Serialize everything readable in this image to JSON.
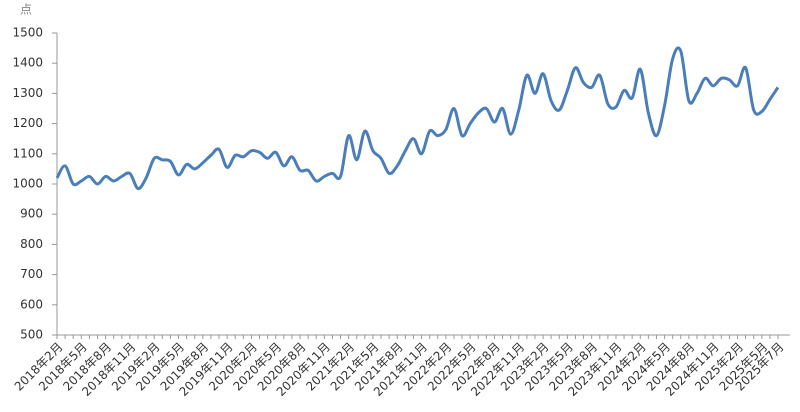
{
  "chart_data": {
    "type": "line",
    "y_label": "点",
    "categories": [
      "2018年2月",
      null,
      null,
      "2018年5月",
      null,
      null,
      "2018年8月",
      null,
      null,
      "2018年11月",
      null,
      null,
      "2019年2月",
      null,
      null,
      "2019年5月",
      null,
      null,
      "2019年8月",
      null,
      null,
      "2019年11月",
      null,
      null,
      "2020年2月",
      null,
      null,
      "2020年5月",
      null,
      null,
      "2020年8月",
      null,
      null,
      "2020年11月",
      null,
      null,
      "2021年2月",
      null,
      null,
      "2021年5月",
      null,
      null,
      "2021年8月",
      null,
      null,
      "2021年11月",
      null,
      null,
      "2022年2月",
      null,
      null,
      "2022年5月",
      null,
      null,
      "2022年8月",
      null,
      null,
      "2022年11月",
      null,
      null,
      "2023年2月",
      null,
      null,
      "2023年5月",
      null,
      null,
      "2023年8月",
      null,
      null,
      "2023年11月",
      null,
      null,
      "2024年2月",
      null,
      null,
      "2024年5月",
      null,
      null,
      "2024年8月",
      null,
      null,
      "2024年11月",
      null,
      null,
      "2025年2月",
      null,
      null,
      "2025年5月",
      null,
      "2025年7月"
    ],
    "series": [
      {
        "color": "#4a7ebb",
        "values": [
          1020,
          1060,
          1000,
          1010,
          1025,
          1000,
          1025,
          1010,
          1025,
          1035,
          985,
          1020,
          1085,
          1080,
          1075,
          1030,
          1065,
          1050,
          1070,
          1095,
          1115,
          1055,
          1095,
          1090,
          1110,
          1105,
          1085,
          1105,
          1060,
          1090,
          1045,
          1045,
          1010,
          1025,
          1035,
          1025,
          1160,
          1080,
          1175,
          1110,
          1085,
          1035,
          1060,
          1110,
          1150,
          1100,
          1175,
          1160,
          1180,
          1250,
          1160,
          1200,
          1235,
          1250,
          1205,
          1250,
          1165,
          1245,
          1360,
          1300,
          1365,
          1275,
          1245,
          1310,
          1385,
          1335,
          1320,
          1360,
          1265,
          1255,
          1310,
          1285,
          1380,
          1235,
          1160,
          1260,
          1415,
          1440,
          1275,
          1300,
          1350,
          1325,
          1350,
          1345,
          1325,
          1385,
          1245,
          1240,
          1280,
          1320
        ]
      }
    ],
    "ylim": [
      500,
      1500
    ],
    "yticks": [
      500,
      600,
      700,
      800,
      900,
      1000,
      1100,
      1200,
      1300,
      1400,
      1500
    ],
    "grid": false
  }
}
